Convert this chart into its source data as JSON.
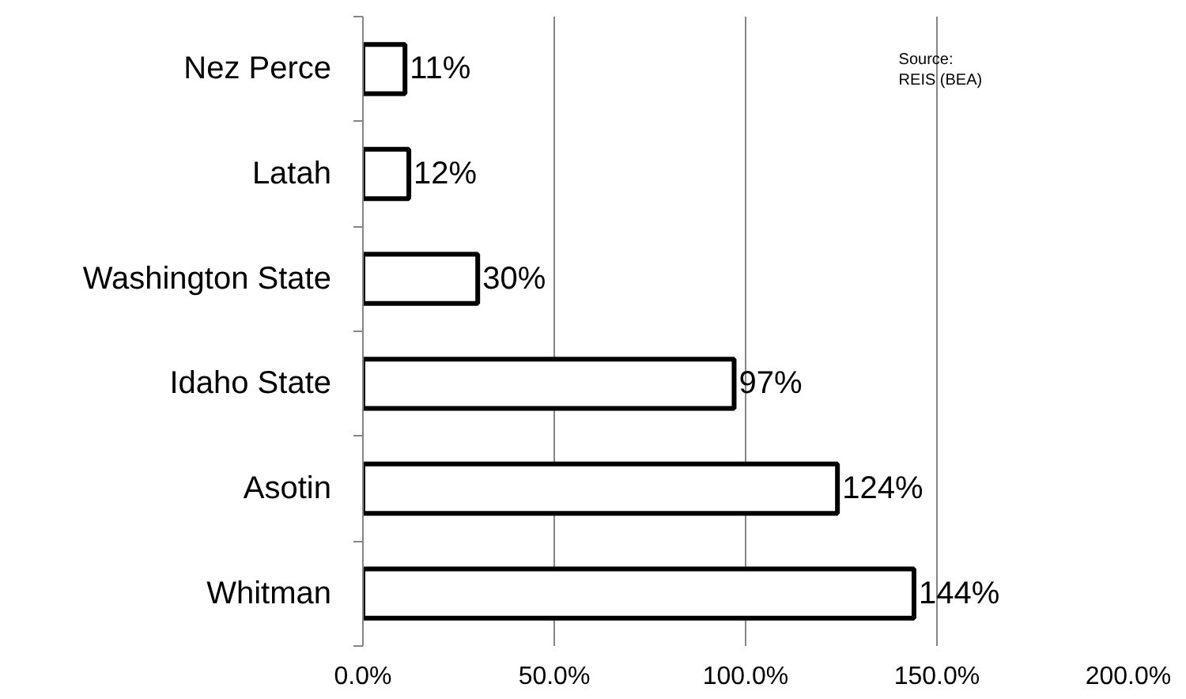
{
  "chart_data": {
    "type": "bar",
    "orientation": "horizontal",
    "categories": [
      "Nez Perce",
      "Latah",
      "Washington State",
      "Idaho State",
      "Asotin",
      "Whitman"
    ],
    "values": [
      11,
      12,
      30,
      97,
      124,
      144
    ],
    "value_labels": [
      "11%",
      "12%",
      "30%",
      "97%",
      "124%",
      "144%"
    ],
    "color": "#ffffff",
    "xlim": [
      0,
      200
    ],
    "xticks": [
      {
        "value": 0,
        "label": "0.0%"
      },
      {
        "value": 50,
        "label": "50.0%"
      },
      {
        "value": 100,
        "label": "100.0%"
      },
      {
        "value": 150,
        "label": "150.0%"
      },
      {
        "value": 200,
        "label": "200.0%"
      }
    ],
    "grid": "x",
    "annotations": [
      "Source:",
      "REIS (BEA)"
    ]
  }
}
